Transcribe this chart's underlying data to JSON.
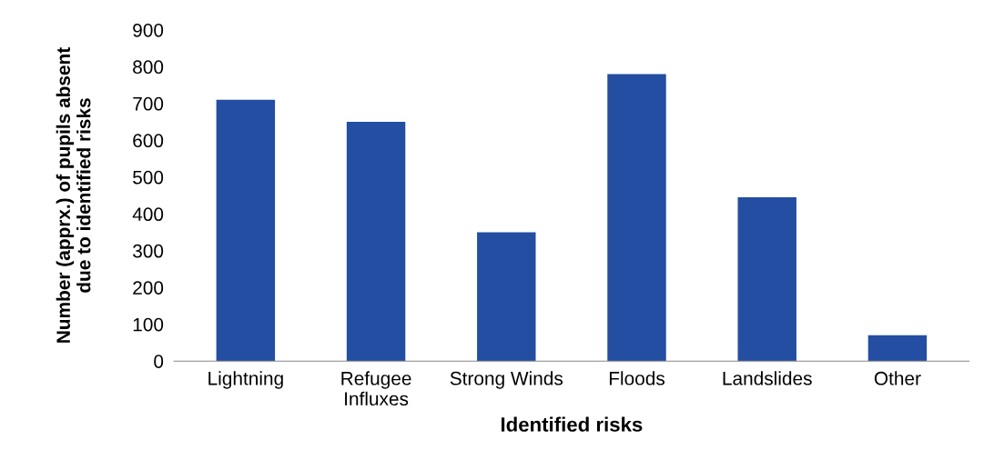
{
  "chart_data": {
    "type": "bar",
    "xlabel": "Identified risks",
    "ylabel": "Number (apprx.) of pupils absent\ndue to identified risks",
    "categories": [
      "Lightning",
      "Refugee\nInfluxes",
      "Strong Winds",
      "Floods",
      "Landslides",
      "Other"
    ],
    "values": [
      710,
      650,
      350,
      780,
      445,
      70
    ],
    "color": "#234ea1",
    "ylim": [
      0,
      900
    ],
    "yticks": [
      0,
      100,
      200,
      300,
      400,
      500,
      600,
      700,
      800,
      900
    ],
    "grid": false,
    "legend": false
  }
}
